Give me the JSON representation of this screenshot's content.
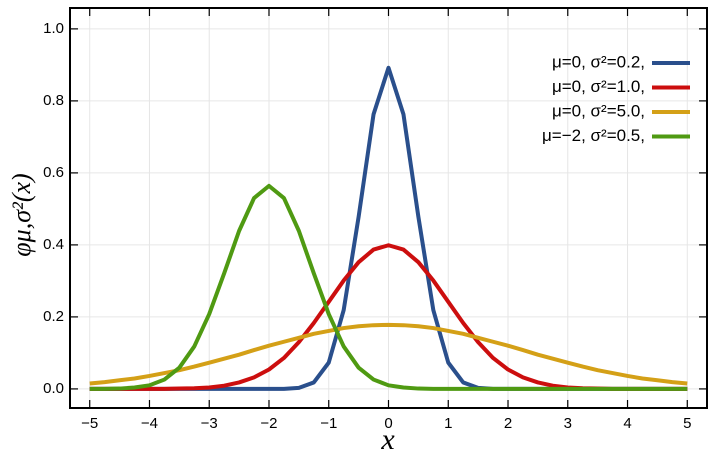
{
  "chart_data": {
    "type": "line",
    "x_label": "x",
    "y_label": "φμ,σ²(x)",
    "x": [
      -5,
      -4.75,
      -4.5,
      -4.25,
      -4,
      -3.75,
      -3.5,
      -3.25,
      -3,
      -2.75,
      -2.5,
      -2.25,
      -2,
      -1.75,
      -1.5,
      -1.25,
      -1,
      -0.75,
      -0.5,
      -0.25,
      0,
      0.25,
      0.5,
      0.75,
      1,
      1.25,
      1.5,
      1.75,
      2,
      2.25,
      2.5,
      2.75,
      3,
      3.25,
      3.5,
      3.75,
      4,
      4.25,
      4.5,
      4.75,
      5
    ],
    "series": [
      {
        "name": "μ=0,   σ²=0.2,",
        "color": "#2a4f8c",
        "values": [
          0,
          0,
          0,
          0,
          0,
          0,
          0,
          0,
          0,
          0,
          0,
          0,
          0,
          0,
          0.003,
          0.018,
          0.073,
          0.219,
          0.478,
          0.763,
          0.892,
          0.763,
          0.478,
          0.219,
          0.073,
          0.018,
          0.003,
          0,
          0,
          0,
          0,
          0,
          0,
          0,
          0,
          0,
          0,
          0,
          0,
          0,
          0
        ]
      },
      {
        "name": "μ=0,   σ²=1.0,",
        "color": "#cc0e0e",
        "values": [
          0,
          0,
          0,
          0,
          0,
          0,
          0.001,
          0.002,
          0.004,
          0.009,
          0.018,
          0.032,
          0.054,
          0.086,
          0.13,
          0.183,
          0.242,
          0.301,
          0.352,
          0.387,
          0.399,
          0.387,
          0.352,
          0.301,
          0.242,
          0.183,
          0.13,
          0.086,
          0.054,
          0.032,
          0.018,
          0.009,
          0.004,
          0.002,
          0.001,
          0,
          0,
          0,
          0,
          0,
          0
        ]
      },
      {
        "name": "μ=0,   σ²=5.0,",
        "color": "#d4a017",
        "values": [
          0.015,
          0.019,
          0.024,
          0.029,
          0.036,
          0.044,
          0.052,
          0.062,
          0.073,
          0.084,
          0.095,
          0.108,
          0.12,
          0.131,
          0.142,
          0.153,
          0.161,
          0.169,
          0.174,
          0.177,
          0.178,
          0.177,
          0.174,
          0.169,
          0.161,
          0.153,
          0.142,
          0.131,
          0.12,
          0.108,
          0.095,
          0.084,
          0.073,
          0.062,
          0.052,
          0.044,
          0.036,
          0.029,
          0.024,
          0.019,
          0.015
        ]
      },
      {
        "name": "μ=−2, σ²=0.5,",
        "color": "#4f9a12",
        "values": [
          0,
          0,
          0.001,
          0.004,
          0.01,
          0.026,
          0.059,
          0.118,
          0.208,
          0.321,
          0.439,
          0.53,
          0.564,
          0.53,
          0.439,
          0.321,
          0.208,
          0.118,
          0.059,
          0.026,
          0.01,
          0.004,
          0.001,
          0,
          0,
          0,
          0,
          0,
          0,
          0,
          0,
          0,
          0,
          0,
          0,
          0,
          0,
          0,
          0,
          0,
          0
        ]
      }
    ],
    "xlim": [
      -5.33,
      5.33
    ],
    "ylim": [
      -0.053,
      1.058
    ],
    "xticks": [
      {
        "value": -5,
        "label": "−5"
      },
      {
        "value": -4,
        "label": "−4"
      },
      {
        "value": -3,
        "label": "−3"
      },
      {
        "value": -2,
        "label": "−2"
      },
      {
        "value": -1,
        "label": "−1"
      },
      0,
      1,
      2,
      3,
      4,
      5
    ],
    "yticks": [
      {
        "value": 0,
        "label": "0.0"
      },
      {
        "value": 0.2,
        "label": "0.2"
      },
      {
        "value": 0.4,
        "label": "0.4"
      },
      {
        "value": 0.6,
        "label": "0.6"
      },
      {
        "value": 0.8,
        "label": "0.8"
      },
      {
        "value": 1,
        "label": "1.0"
      }
    ],
    "grid": true,
    "legend": "upper right"
  }
}
